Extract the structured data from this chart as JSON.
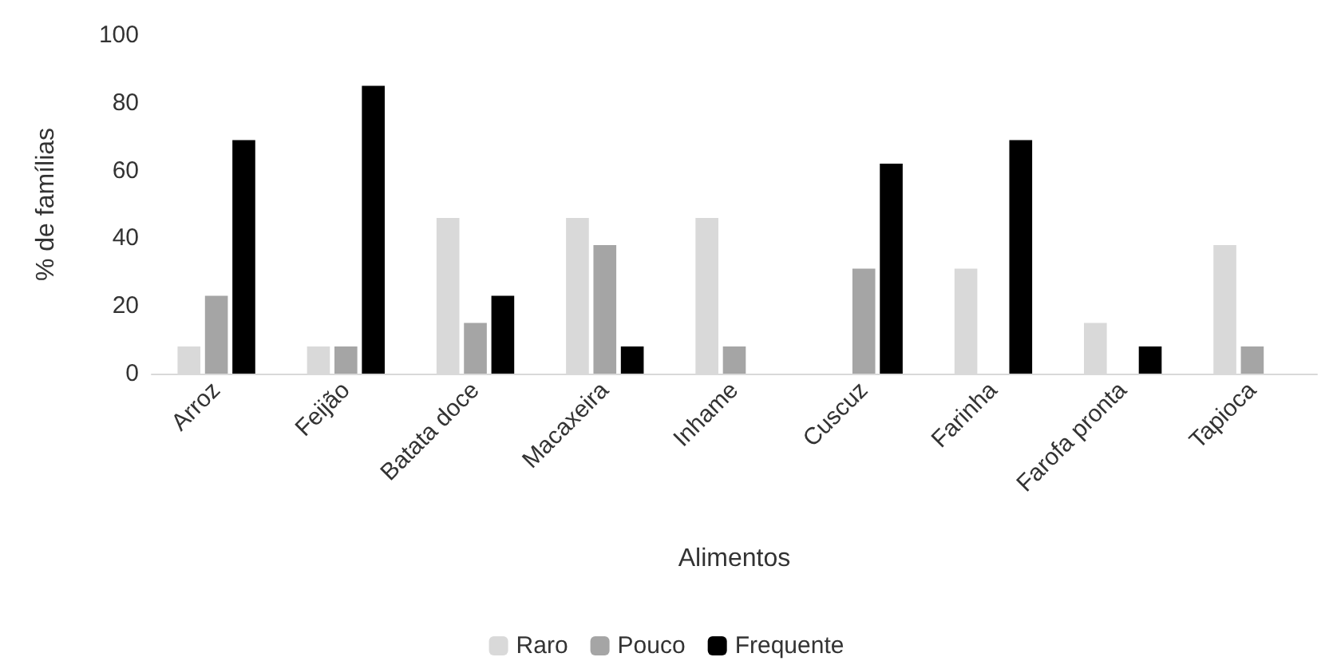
{
  "chart_data": {
    "type": "bar",
    "xlabel": "Alimentos",
    "ylabel": "% de famílias",
    "categories": [
      "Arroz",
      "Feijão",
      "Batata doce",
      "Macaxeira",
      "Inhame",
      "Cuscuz",
      "Farinha",
      "Farofa pronta",
      "Tapioca"
    ],
    "series": [
      {
        "name": "Raro",
        "color": "#d9d9d9",
        "values": [
          8,
          8,
          46,
          46,
          46,
          0,
          31,
          15,
          38
        ]
      },
      {
        "name": "Pouco",
        "color": "#a5a5a5",
        "values": [
          23,
          8,
          15,
          38,
          8,
          31,
          0,
          0,
          8
        ]
      },
      {
        "name": "Frequente",
        "color": "#000000",
        "values": [
          69,
          85,
          23,
          8,
          0,
          62,
          69,
          8,
          0
        ]
      }
    ],
    "ylim": [
      0,
      100
    ],
    "yticks": [
      0,
      20,
      40,
      60,
      80,
      100
    ],
    "grid": false,
    "legend": "bottom"
  }
}
